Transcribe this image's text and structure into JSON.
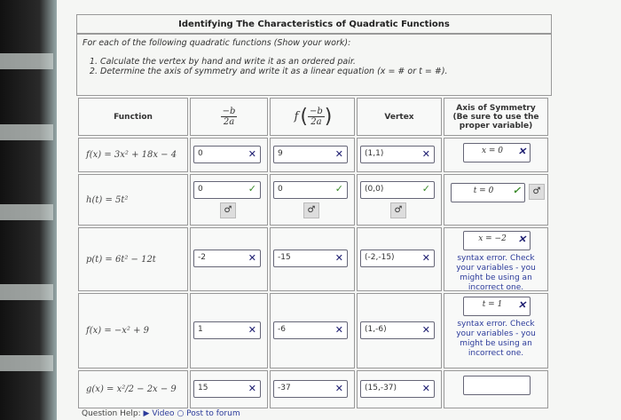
{
  "title": "Identifying The Characteristics of Quadratic Functions",
  "intro": "For each of the following quadratic functions (Show your work):",
  "steps": [
    "Calculate the vertex by hand and write it as an ordered pair.",
    "Determine the axis of symmetry and write it as a linear equation (x = # or t = #)."
  ],
  "headers": {
    "function": "Function",
    "neg_b": "−b",
    "two_a": "2a",
    "f": "f",
    "vertex": "Vertex",
    "axis": "Axis of Symmetry (Be sure to use the proper variable)"
  },
  "rows": [
    {
      "fn": "f(x) = 3x² + 18x − 4",
      "b2a": "0",
      "fval": "9",
      "vertex": "(1,1)",
      "axis": "x = 0",
      "marks": [
        "x",
        "x",
        "x",
        "x"
      ],
      "msg": ""
    },
    {
      "fn": "h(t) = 5t²",
      "b2a": "0",
      "fval": "0",
      "vertex": "(0,0)",
      "axis": "t = 0",
      "marks": [
        "ok",
        "ok",
        "ok",
        "ok"
      ],
      "msg": ""
    },
    {
      "fn": "p(t) = 6t² − 12t",
      "b2a": "-2",
      "fval": "-15",
      "vertex": "(-2,-15)",
      "axis": "x = −2",
      "marks": [
        "x",
        "x",
        "x",
        "x"
      ],
      "msg": "syntax error. Check your variables - you might be using an incorrect one."
    },
    {
      "fn": "f(x) = −x² + 9",
      "b2a": "1",
      "fval": "-6",
      "vertex": "(1,-6)",
      "axis": "t = 1",
      "marks": [
        "x",
        "x",
        "x",
        "x"
      ],
      "msg": "syntax error. Check your variables - you might be using an incorrect one."
    },
    {
      "fn": "g(x) = x²/2 − 2x − 9",
      "b2a": "15",
      "fval": "-37",
      "vertex": "(15,-37)",
      "axis": "",
      "marks": [
        "x",
        "x",
        "x",
        ""
      ],
      "msg": ""
    }
  ],
  "mark_glyphs": {
    "x": "✕",
    "ok": "✓"
  },
  "help": {
    "label": "Question Help:",
    "video": "Video",
    "post": "Post to forum"
  },
  "colors": {
    "error_msg": "#2b3a9a",
    "check": "#3a8a2a",
    "cross": "#1a1a6e"
  }
}
